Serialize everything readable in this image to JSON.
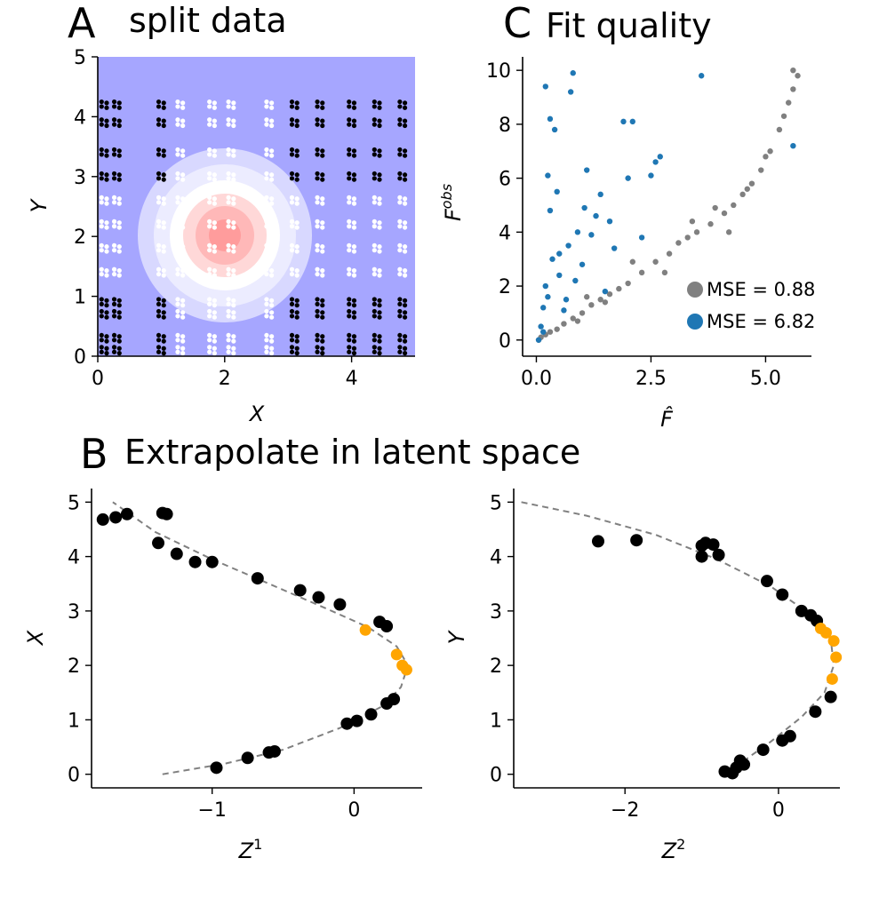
{
  "panel_a": {
    "letter": "A",
    "title": "split data",
    "xlabel": "X",
    "ylabel": "Y",
    "xticks": [
      "0",
      "2",
      "4"
    ],
    "yticks": [
      "0",
      "1",
      "2",
      "3",
      "4",
      "5"
    ]
  },
  "panel_c": {
    "letter": "C",
    "title": "Fit quality",
    "xlabel": "F̂",
    "ylabel_base": "F",
    "ylabel_sup": "obs",
    "xticks": [
      "0.0",
      "2.5",
      "5.0"
    ],
    "yticks": [
      "0",
      "2",
      "4",
      "6",
      "8",
      "10"
    ],
    "legend": [
      {
        "label": "MSE = 0.88",
        "color": "#808080"
      },
      {
        "label": "MSE = 6.82",
        "color": "#1f77b4"
      }
    ]
  },
  "panel_b": {
    "letter": "B",
    "title": "Extrapolate in latent space",
    "left": {
      "xlabel_base": "Z",
      "xlabel_sup": "1",
      "ylabel": "X",
      "xticks": [
        "−1",
        "0"
      ],
      "yticks": [
        "0",
        "1",
        "2",
        "3",
        "4",
        "5"
      ]
    },
    "right": {
      "xlabel_base": "Z",
      "xlabel_sup": "2",
      "ylabel": "Y",
      "xticks": [
        "−2",
        "0"
      ],
      "yticks": [
        "0",
        "1",
        "2",
        "3",
        "4",
        "5"
      ]
    }
  },
  "colors": {
    "train": "#000000",
    "test": "#ffa500",
    "in_fit": "#808080",
    "out_fit": "#1f77b4",
    "background": "#a6a6ff",
    "curve": "#808080"
  },
  "chart_data": [
    {
      "panel": "A",
      "type": "scatter",
      "title": "split data",
      "xlabel": "X",
      "ylabel": "Y",
      "xlim": [
        0,
        5
      ],
      "ylim": [
        0,
        5
      ],
      "grid": false,
      "field_center": [
        2,
        2
      ],
      "grid_x": [
        0.1,
        0.3,
        1.0,
        1.3,
        1.8,
        2.1,
        2.7,
        3.1,
        3.5,
        4.0,
        4.4,
        4.8
      ],
      "grid_y": [
        0.1,
        0.3,
        0.7,
        0.9,
        1.4,
        1.8,
        2.2,
        2.6,
        3.0,
        3.4,
        3.9,
        4.2
      ],
      "series": [
        {
          "name": "",
          "points": "training region (black)"
        },
        {
          "name": "",
          "points": "held-out region (white), within ~1 of center"
        }
      ]
    },
    {
      "panel": "C",
      "type": "scatter",
      "title": "Fit quality",
      "xlabel": "F̂",
      "ylabel": "F^obs",
      "xlim": [
        -0.3,
        6.0
      ],
      "ylim": [
        -0.6,
        10.5
      ],
      "legend_position": "lower-right",
      "series": [
        {
          "name": "MSE = 0.88",
          "color": "#808080",
          "points": [
            [
              0.05,
              0.0
            ],
            [
              0.1,
              0.1
            ],
            [
              0.2,
              0.2
            ],
            [
              0.3,
              0.3
            ],
            [
              0.45,
              0.4
            ],
            [
              0.6,
              0.6
            ],
            [
              0.8,
              0.8
            ],
            [
              1.0,
              1.0
            ],
            [
              1.2,
              1.3
            ],
            [
              1.4,
              1.5
            ],
            [
              1.6,
              1.7
            ],
            [
              1.8,
              1.9
            ],
            [
              2.0,
              2.1
            ],
            [
              2.3,
              2.5
            ],
            [
              2.6,
              2.9
            ],
            [
              2.9,
              3.2
            ],
            [
              3.1,
              3.6
            ],
            [
              3.3,
              3.8
            ],
            [
              3.5,
              4.0
            ],
            [
              3.8,
              4.3
            ],
            [
              4.1,
              4.7
            ],
            [
              4.3,
              5.0
            ],
            [
              4.5,
              5.4
            ],
            [
              4.7,
              5.8
            ],
            [
              4.9,
              6.3
            ],
            [
              5.0,
              6.8
            ],
            [
              5.1,
              7.0
            ],
            [
              5.3,
              7.8
            ],
            [
              5.4,
              8.3
            ],
            [
              5.5,
              8.8
            ],
            [
              5.6,
              9.3
            ],
            [
              5.6,
              10.0
            ],
            [
              5.7,
              9.8
            ],
            [
              1.1,
              1.6
            ],
            [
              2.1,
              2.9
            ],
            [
              3.4,
              4.4
            ],
            [
              4.2,
              4.0
            ],
            [
              2.8,
              2.5
            ],
            [
              1.5,
              1.4
            ],
            [
              0.9,
              0.7
            ],
            [
              3.9,
              4.9
            ],
            [
              4.6,
              5.6
            ]
          ]
        },
        {
          "name": "MSE = 6.82",
          "color": "#1f77b4",
          "points": [
            [
              0.05,
              0.0
            ],
            [
              0.1,
              0.5
            ],
            [
              0.15,
              1.2
            ],
            [
              0.2,
              2.0
            ],
            [
              0.2,
              9.4
            ],
            [
              0.25,
              6.1
            ],
            [
              0.3,
              4.8
            ],
            [
              0.35,
              3.0
            ],
            [
              0.3,
              8.2
            ],
            [
              0.4,
              7.8
            ],
            [
              0.45,
              5.5
            ],
            [
              0.5,
              2.4
            ],
            [
              0.6,
              1.1
            ],
            [
              0.7,
              3.5
            ],
            [
              0.75,
              9.2
            ],
            [
              0.8,
              9.9
            ],
            [
              0.9,
              4.0
            ],
            [
              1.0,
              2.8
            ],
            [
              1.1,
              6.3
            ],
            [
              1.2,
              3.9
            ],
            [
              1.3,
              4.6
            ],
            [
              1.4,
              5.4
            ],
            [
              1.5,
              1.8
            ],
            [
              1.6,
              4.4
            ],
            [
              1.7,
              3.4
            ],
            [
              1.9,
              8.1
            ],
            [
              2.0,
              6.0
            ],
            [
              2.1,
              8.1
            ],
            [
              2.3,
              3.8
            ],
            [
              2.5,
              6.1
            ],
            [
              2.6,
              6.6
            ],
            [
              2.7,
              6.8
            ],
            [
              3.6,
              9.8
            ],
            [
              5.6,
              7.2
            ],
            [
              0.15,
              0.3
            ],
            [
              0.25,
              1.6
            ],
            [
              0.5,
              3.2
            ],
            [
              0.65,
              1.5
            ],
            [
              0.85,
              2.2
            ],
            [
              1.05,
              4.9
            ]
          ]
        }
      ]
    },
    {
      "panel": "B-left",
      "type": "scatter",
      "xlabel": "Z^1",
      "ylabel": "X",
      "xlim": [
        -1.85,
        0.48
      ],
      "ylim": [
        -0.25,
        5.25
      ],
      "curve": [
        [
          -1.35,
          0.0
        ],
        [
          -0.9,
          0.2
        ],
        [
          -0.5,
          0.45
        ],
        [
          -0.1,
          0.85
        ],
        [
          0.2,
          1.25
        ],
        [
          0.33,
          1.6
        ],
        [
          0.38,
          2.0
        ],
        [
          0.3,
          2.35
        ],
        [
          0.1,
          2.7
        ],
        [
          -0.2,
          3.05
        ],
        [
          -0.6,
          3.5
        ],
        [
          -1.0,
          3.95
        ],
        [
          -1.4,
          4.45
        ],
        [
          -1.7,
          5.0
        ]
      ],
      "series": [
        {
          "name": "",
          "color": "#000000",
          "points": [
            [
              -0.97,
              0.12
            ],
            [
              -0.75,
              0.3
            ],
            [
              -0.6,
              0.4
            ],
            [
              -0.56,
              0.42
            ],
            [
              -0.05,
              0.93
            ],
            [
              0.02,
              0.98
            ],
            [
              0.12,
              1.1
            ],
            [
              0.23,
              1.3
            ],
            [
              0.28,
              1.38
            ],
            [
              -0.1,
              3.12
            ],
            [
              -0.25,
              3.25
            ],
            [
              -0.38,
              3.38
            ],
            [
              -0.68,
              3.6
            ],
            [
              -1.0,
              3.9
            ],
            [
              -1.12,
              3.9
            ],
            [
              -1.25,
              4.05
            ],
            [
              -1.38,
              4.25
            ],
            [
              -1.32,
              4.78
            ],
            [
              -1.35,
              4.8
            ],
            [
              -1.6,
              4.78
            ],
            [
              -1.68,
              4.72
            ],
            [
              -1.77,
              4.68
            ],
            [
              0.18,
              2.8
            ],
            [
              0.23,
              2.72
            ]
          ]
        },
        {
          "name": "",
          "color": "#ffa500",
          "points": [
            [
              0.08,
              2.65
            ],
            [
              0.3,
              2.2
            ],
            [
              0.34,
              2.0
            ],
            [
              0.37,
              1.92
            ]
          ]
        }
      ]
    },
    {
      "panel": "B-right",
      "type": "scatter",
      "xlabel": "Z^2",
      "ylabel": "Y",
      "xlim": [
        -3.45,
        0.8
      ],
      "ylim": [
        -0.25,
        5.25
      ],
      "curve": [
        [
          -3.35,
          5.0
        ],
        [
          -2.5,
          4.75
        ],
        [
          -1.6,
          4.4
        ],
        [
          -0.8,
          3.95
        ],
        [
          -0.1,
          3.45
        ],
        [
          0.4,
          2.95
        ],
        [
          0.68,
          2.5
        ],
        [
          0.72,
          2.0
        ],
        [
          0.6,
          1.5
        ],
        [
          0.3,
          1.05
        ],
        [
          -0.1,
          0.6
        ],
        [
          -0.45,
          0.25
        ],
        [
          -0.65,
          0.0
        ]
      ],
      "series": [
        {
          "name": "",
          "color": "#000000",
          "points": [
            [
              -2.35,
              4.28
            ],
            [
              -1.85,
              4.3
            ],
            [
              -1.0,
              4.2
            ],
            [
              -0.95,
              4.25
            ],
            [
              -0.85,
              4.22
            ],
            [
              -0.78,
              4.03
            ],
            [
              -1.0,
              4.0
            ],
            [
              -0.15,
              3.55
            ],
            [
              0.05,
              3.3
            ],
            [
              0.3,
              3.0
            ],
            [
              0.42,
              2.92
            ],
            [
              0.5,
              2.82
            ],
            [
              0.68,
              1.42
            ],
            [
              0.48,
              1.15
            ],
            [
              0.15,
              0.7
            ],
            [
              0.05,
              0.62
            ],
            [
              -0.2,
              0.45
            ],
            [
              -0.5,
              0.25
            ],
            [
              -0.45,
              0.18
            ],
            [
              -0.55,
              0.12
            ],
            [
              -0.7,
              0.05
            ],
            [
              -0.6,
              0.02
            ]
          ]
        },
        {
          "name": "",
          "color": "#ffa500",
          "points": [
            [
              0.55,
              2.68
            ],
            [
              0.62,
              2.6
            ],
            [
              0.72,
              2.45
            ],
            [
              0.75,
              2.15
            ],
            [
              0.7,
              1.75
            ]
          ]
        }
      ]
    }
  ]
}
